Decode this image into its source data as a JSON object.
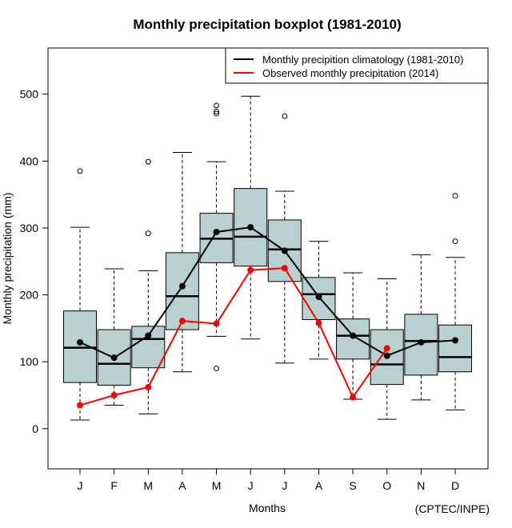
{
  "chart_data": {
    "type": "boxplot",
    "title": "Monthly precipitation boxplot (1981-2010)",
    "xlabel": "Months",
    "ylabel": "Monthly precipitation (mm)",
    "credit": "(CPTEC/INPE)",
    "ylim": [
      -60,
      569
    ],
    "yticks": [
      0,
      100,
      200,
      300,
      400,
      500
    ],
    "categories": [
      "J",
      "F",
      "M",
      "A",
      "M",
      "J",
      "J",
      "A",
      "S",
      "O",
      "N",
      "D"
    ],
    "box_color": "#b8d0d0",
    "boxes": [
      {
        "whisker_low": 13,
        "q1": 69,
        "median": 121,
        "q3": 176,
        "whisker_high": 301,
        "outliers": [
          385
        ]
      },
      {
        "whisker_low": 35,
        "q1": 65,
        "median": 97,
        "q3": 148,
        "whisker_high": 239,
        "outliers": []
      },
      {
        "whisker_low": 22,
        "q1": 91,
        "median": 134,
        "q3": 153,
        "whisker_high": 236,
        "outliers": [
          292,
          399
        ]
      },
      {
        "whisker_low": 85,
        "q1": 148,
        "median": 198,
        "q3": 263,
        "whisker_high": 413,
        "outliers": []
      },
      {
        "whisker_low": 138,
        "q1": 248,
        "median": 284,
        "q3": 322,
        "whisker_high": 399,
        "outliers": [
          90,
          471,
          474,
          483
        ]
      },
      {
        "whisker_low": 134,
        "q1": 243,
        "median": 287,
        "q3": 359,
        "whisker_high": 497,
        "outliers": []
      },
      {
        "whisker_low": 98,
        "q1": 220,
        "median": 268,
        "q3": 312,
        "whisker_high": 355,
        "outliers": [
          467
        ]
      },
      {
        "whisker_low": 104,
        "q1": 163,
        "median": 201,
        "q3": 226,
        "whisker_high": 280,
        "outliers": []
      },
      {
        "whisker_low": 44,
        "q1": 104,
        "median": 139,
        "q3": 164,
        "whisker_high": 233,
        "outliers": []
      },
      {
        "whisker_low": 14,
        "q1": 66,
        "median": 96,
        "q3": 148,
        "whisker_high": 224,
        "outliers": []
      },
      {
        "whisker_low": 43,
        "q1": 80,
        "median": 131,
        "q3": 171,
        "whisker_high": 260,
        "outliers": []
      },
      {
        "whisker_low": 28,
        "q1": 85,
        "median": 107,
        "q3": 155,
        "whisker_high": 256,
        "outliers": [
          280,
          348
        ]
      }
    ],
    "series": [
      {
        "name": "Monthly precipition climatology (1981-2010)",
        "color": "#000000",
        "values": [
          129,
          106,
          139,
          213,
          294,
          301,
          266,
          197,
          139,
          109,
          129,
          132
        ]
      },
      {
        "name": "Observed monthly precipitation (2014)",
        "color": "#ff0000",
        "values": [
          35,
          50,
          62,
          161,
          157,
          237,
          240,
          158,
          47,
          120,
          null,
          null
        ]
      }
    ],
    "legend_position": "top-right"
  }
}
